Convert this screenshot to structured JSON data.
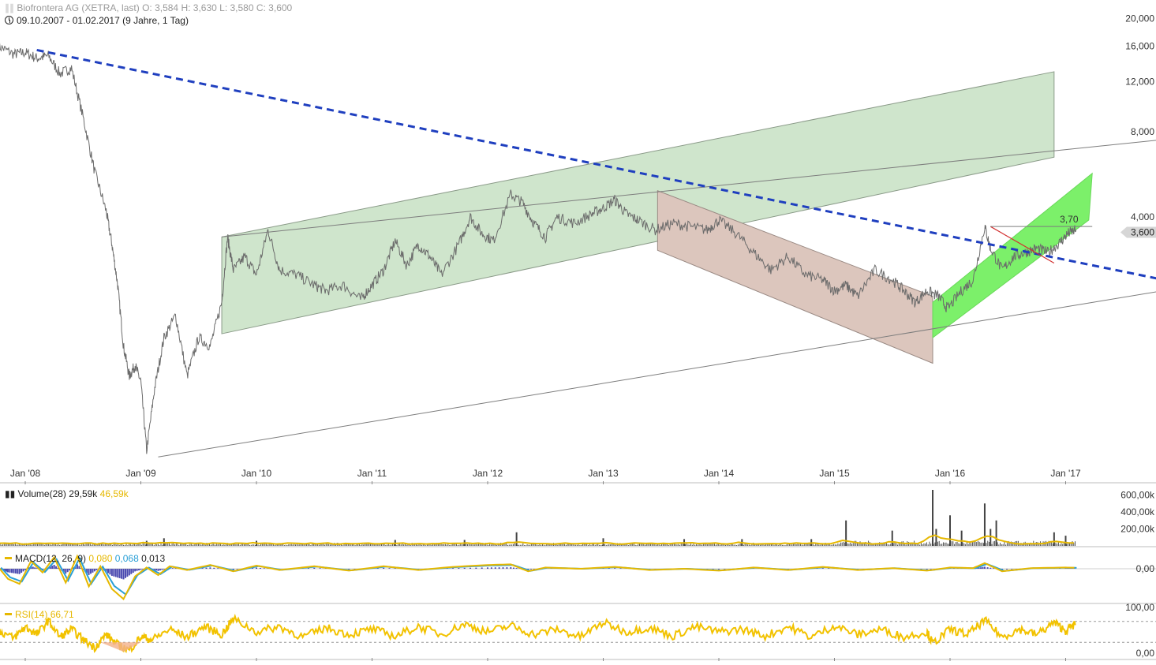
{
  "header": {
    "title": "Biofrontera AG (XETRA, last)",
    "ohlc": "O: 3,584   H: 3,630   L: 3,580   C: 3,600",
    "range": "09.10.2007 - 01.02.2017",
    "range_detail": "(9 Jahre, 1 Tag)"
  },
  "colors": {
    "price_line": "#6b6b6b",
    "trend_dashed": "#1f3fbf",
    "channel_green_fill": "#cfe5cc",
    "channel_brown_fill": "#dcc6bd",
    "channel_bright_green": "#7cf06a",
    "volume_avg": "#e6b800",
    "macd_line": "#e6b800",
    "signal_line": "#2a9fd6",
    "histogram": "#4a4ab0",
    "rsi_line": "#f2c200"
  },
  "chart_data": [
    {
      "type": "line",
      "panel": "price",
      "scale": "log",
      "series_name": "Biofrontera AG",
      "y_ticks": [
        "20,000",
        "16,000",
        "12,000",
        "8,000",
        "4,000"
      ],
      "y_tick_values": [
        20,
        16,
        12,
        8,
        4
      ],
      "x_ticks": [
        "Jan '08",
        "Jan '09",
        "Jan '10",
        "Jan '11",
        "Jan '12",
        "Jan '13",
        "Jan '14",
        "Jan '15",
        "Jan '16",
        "Jan '17"
      ],
      "last_price_label": "3,600",
      "last_price": 3.6,
      "annotation": "3,70",
      "annotation_value": 3.7,
      "x": [
        2007.77,
        2007.9,
        2008.0,
        2008.1,
        2008.2,
        2008.3,
        2008.4,
        2008.5,
        2008.6,
        2008.7,
        2008.75,
        2008.8,
        2008.85,
        2008.9,
        2008.95,
        2009.0,
        2009.05,
        2009.12,
        2009.2,
        2009.3,
        2009.4,
        2009.5,
        2009.6,
        2009.7,
        2009.75,
        2009.8,
        2009.9,
        2010.0,
        2010.1,
        2010.2,
        2010.35,
        2010.5,
        2010.6,
        2010.75,
        2010.9,
        2011.0,
        2011.1,
        2011.2,
        2011.3,
        2011.4,
        2011.5,
        2011.6,
        2011.75,
        2011.85,
        2011.95,
        2012.05,
        2012.2,
        2012.3,
        2012.4,
        2012.5,
        2012.6,
        2012.75,
        2012.9,
        2013.0,
        2013.1,
        2013.2,
        2013.3,
        2013.45,
        2013.6,
        2013.75,
        2013.9,
        2014.0,
        2014.15,
        2014.3,
        2014.45,
        2014.6,
        2014.75,
        2014.9,
        2015.0,
        2015.1,
        2015.2,
        2015.35,
        2015.5,
        2015.6,
        2015.7,
        2015.8,
        2015.9,
        2015.98,
        2016.1,
        2016.2,
        2016.3,
        2016.35,
        2016.45,
        2016.55,
        2016.65,
        2016.75,
        2016.85,
        2016.95,
        2017.02,
        2017.09
      ],
      "values": [
        16.0,
        15.0,
        15.2,
        14.5,
        14.8,
        12.8,
        13.4,
        9.0,
        5.8,
        4.2,
        3.2,
        2.3,
        1.4,
        1.1,
        1.2,
        1.05,
        0.6,
        1.0,
        1.5,
        1.8,
        1.1,
        1.5,
        1.4,
        2.0,
        3.4,
        2.6,
        2.9,
        2.5,
        3.6,
        2.6,
        2.5,
        2.3,
        2.2,
        2.3,
        2.05,
        2.3,
        2.6,
        3.3,
        2.7,
        3.2,
        2.9,
        2.5,
        3.2,
        4.0,
        3.5,
        3.3,
        4.8,
        4.5,
        3.8,
        3.4,
        4.0,
        3.8,
        4.1,
        4.3,
        4.6,
        4.1,
        3.9,
        3.6,
        3.8,
        3.7,
        3.6,
        3.9,
        3.5,
        3.0,
        2.6,
        2.9,
        2.5,
        2.4,
        2.2,
        2.3,
        2.1,
        2.6,
        2.4,
        2.2,
        2.0,
        2.2,
        2.1,
        1.9,
        2.2,
        2.4,
        3.7,
        3.1,
        2.6,
        2.9,
        3.0,
        3.1,
        3.0,
        3.25,
        3.5,
        3.6
      ]
    },
    {
      "type": "bar",
      "panel": "volume",
      "series_name": "Volume(28)",
      "legend_value_1": "29,59k",
      "legend_value_2": "46,59k",
      "y_ticks": [
        "600,00k",
        "400,00k",
        "200,00k"
      ],
      "y_tick_values": [
        600,
        400,
        200
      ],
      "spikes_x": [
        2009.05,
        2009.2,
        2010.0,
        2011.2,
        2011.8,
        2012.25,
        2013.0,
        2013.7,
        2014.2,
        2014.8,
        2015.1,
        2015.5,
        2015.85,
        2015.88,
        2016.0,
        2016.1,
        2016.3,
        2016.35,
        2016.4,
        2016.9,
        2017.0
      ],
      "spikes_k": [
        60,
        90,
        60,
        70,
        70,
        160,
        90,
        80,
        80,
        80,
        300,
        180,
        660,
        200,
        360,
        180,
        500,
        200,
        300,
        160,
        120
      ]
    },
    {
      "type": "line",
      "panel": "macd",
      "series_name": "MACD(12, 26, 9)",
      "legend_value_1": "0,080",
      "legend_value_2": "0,068",
      "legend_value_3": "0,013",
      "y_ticks": [
        "0,00"
      ],
      "x": [
        2007.77,
        2007.85,
        2007.95,
        2008.05,
        2008.15,
        2008.25,
        2008.35,
        2008.45,
        2008.55,
        2008.65,
        2008.75,
        2008.85,
        2008.95,
        2009.05,
        2009.15,
        2009.25,
        2009.4,
        2009.6,
        2009.8,
        2010.0,
        2010.2,
        2010.5,
        2010.8,
        2011.1,
        2011.4,
        2011.7,
        2012.0,
        2012.2,
        2012.35,
        2012.5,
        2012.8,
        2013.1,
        2013.4,
        2013.7,
        2014.0,
        2014.3,
        2014.6,
        2014.9,
        2015.2,
        2015.5,
        2015.8,
        2016.0,
        2016.2,
        2016.3,
        2016.45,
        2016.7,
        2017.0,
        2017.09
      ],
      "values": [
        0.1,
        -0.8,
        -1.2,
        0.6,
        -0.3,
        0.9,
        -1.1,
        1.0,
        -1.4,
        0.2,
        -1.6,
        -2.4,
        -0.6,
        0.1,
        -0.5,
        0.2,
        -0.1,
        0.3,
        -0.2,
        0.25,
        -0.1,
        0.2,
        -0.15,
        0.2,
        -0.1,
        0.15,
        0.3,
        0.35,
        -0.2,
        0.1,
        0.0,
        0.15,
        -0.1,
        0.0,
        -0.15,
        0.1,
        -0.1,
        0.15,
        -0.1,
        0.05,
        -0.15,
        0.1,
        0.05,
        0.45,
        -0.2,
        0.05,
        0.1,
        0.08
      ]
    },
    {
      "type": "line",
      "panel": "rsi",
      "series_name": "RSI(14)",
      "legend_value": "66,71",
      "y_ticks": [
        "100,00",
        "0,00"
      ],
      "y_range": [
        0,
        100
      ],
      "x": [
        2007.77,
        2007.9,
        2008.0,
        2008.1,
        2008.2,
        2008.3,
        2008.4,
        2008.5,
        2008.6,
        2008.7,
        2008.8,
        2008.9,
        2009.0,
        2009.1,
        2009.25,
        2009.4,
        2009.55,
        2009.7,
        2009.8,
        2010.0,
        2010.2,
        2010.4,
        2010.6,
        2010.8,
        2011.0,
        2011.2,
        2011.4,
        2011.6,
        2011.8,
        2012.0,
        2012.2,
        2012.4,
        2012.6,
        2012.8,
        2013.0,
        2013.2,
        2013.4,
        2013.6,
        2013.8,
        2014.0,
        2014.2,
        2014.4,
        2014.6,
        2014.8,
        2015.0,
        2015.2,
        2015.4,
        2015.6,
        2015.8,
        2015.85,
        2016.0,
        2016.15,
        2016.3,
        2016.45,
        2016.6,
        2016.75,
        2016.9,
        2017.0,
        2017.09
      ],
      "values": [
        52,
        38,
        60,
        45,
        72,
        40,
        55,
        35,
        20,
        45,
        25,
        15,
        40,
        35,
        55,
        40,
        60,
        45,
        75,
        50,
        60,
        40,
        58,
        45,
        55,
        42,
        60,
        45,
        65,
        50,
        62,
        45,
        55,
        40,
        68,
        50,
        58,
        42,
        60,
        50,
        55,
        42,
        60,
        40,
        62,
        45,
        55,
        40,
        50,
        28,
        55,
        45,
        72,
        40,
        55,
        45,
        68,
        52,
        66
      ]
    }
  ]
}
